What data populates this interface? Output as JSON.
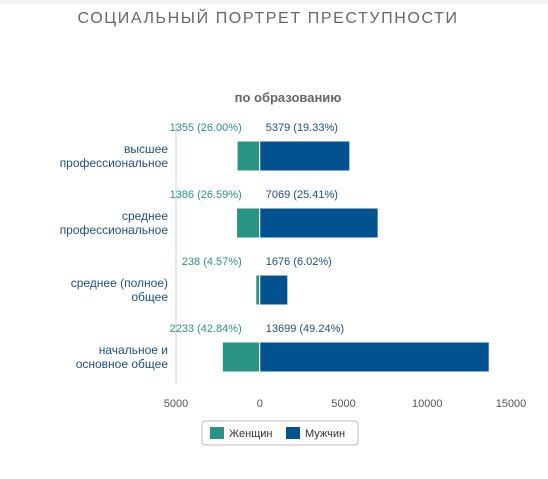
{
  "page": {
    "title": "СОЦИАЛЬНЫЙ ПОРТРЕТ ПРЕСТУПНОСТИ"
  },
  "chart_data": {
    "type": "bar",
    "orientation": "horizontal",
    "stacking": "diverging",
    "title": "по образованию",
    "categories": [
      [
        "высшее",
        "профессиональное"
      ],
      [
        "среднее",
        "профессиональное"
      ],
      [
        "среднее (полное)",
        "общее"
      ],
      [
        "начальное и",
        "основное общее"
      ]
    ],
    "series": [
      {
        "name": "Женщин",
        "color": "#2a9484",
        "direction": "left",
        "values": [
          1355,
          1386,
          238,
          2233
        ],
        "labels": [
          "1355 (26.00%)",
          "1386 (26.59%)",
          "238 (4.57%)",
          "2233 (42.84%)"
        ]
      },
      {
        "name": "Мужчин",
        "color": "#02528f",
        "direction": "right",
        "values": [
          5379,
          7069,
          1676,
          13699
        ],
        "labels": [
          "5379 (19.33%)",
          "7069 (25.41%)",
          "1676 (6.02%)",
          "13699 (49.24%)"
        ]
      }
    ],
    "x_axis": {
      "range": [
        -5000,
        15000
      ],
      "ticks": [
        -5000,
        0,
        5000,
        10000,
        15000
      ],
      "tick_labels": [
        "5000",
        "0",
        "5000",
        "10000",
        "15000"
      ]
    },
    "grid": false,
    "legend": "bottom-center"
  }
}
